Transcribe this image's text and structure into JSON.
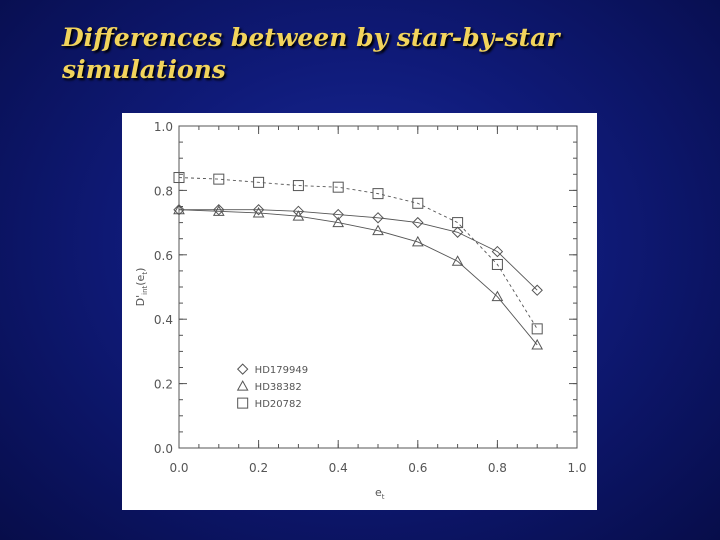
{
  "slide": {
    "title_lines": [
      "Differences between by star-by-star",
      "simulations"
    ]
  },
  "colors": {
    "background": "#0f1a78",
    "title": "#f2d45c",
    "plot_ink": "#555555"
  },
  "chart_data": {
    "type": "line",
    "title": "",
    "xlabel": "e",
    "xlabel_subscript": "t",
    "ylabel": "D'",
    "ylabel_subscript": "int",
    "ylabel_paren": "(e",
    "ylabel_paren_subscript": "t",
    "ylabel_paren_close": ")",
    "xlim": [
      0.0,
      1.0
    ],
    "ylim": [
      0.0,
      1.0
    ],
    "xticks": [
      "0.0",
      "0.2",
      "0.4",
      "0.6",
      "0.8",
      "1.0"
    ],
    "yticks": [
      "0.0",
      "0.2",
      "0.4",
      "0.6",
      "0.8",
      "1.0"
    ],
    "grid": false,
    "legend_position": "bottom-left",
    "series": [
      {
        "name": "HD179949",
        "marker": "diamond",
        "dash": "",
        "x": [
          0.0,
          0.1,
          0.2,
          0.3,
          0.4,
          0.5,
          0.6,
          0.7,
          0.8,
          0.9
        ],
        "y": [
          0.74,
          0.74,
          0.74,
          0.735,
          0.725,
          0.715,
          0.7,
          0.67,
          0.61,
          0.49
        ]
      },
      {
        "name": "HD38382",
        "marker": "triangle",
        "dash": "",
        "x": [
          0.0,
          0.1,
          0.2,
          0.3,
          0.4,
          0.5,
          0.6,
          0.7,
          0.8,
          0.9
        ],
        "y": [
          0.74,
          0.735,
          0.73,
          0.72,
          0.7,
          0.675,
          0.64,
          0.58,
          0.47,
          0.32
        ]
      },
      {
        "name": "HD20782",
        "marker": "square",
        "dash": "3,3",
        "x": [
          0.0,
          0.1,
          0.2,
          0.3,
          0.4,
          0.5,
          0.6,
          0.7,
          0.8,
          0.9
        ],
        "y": [
          0.84,
          0.835,
          0.825,
          0.815,
          0.81,
          0.79,
          0.76,
          0.7,
          0.57,
          0.37
        ]
      }
    ]
  }
}
